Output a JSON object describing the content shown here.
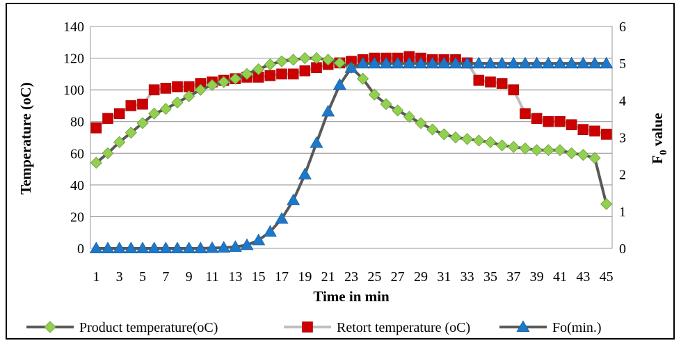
{
  "chart_data": {
    "type": "line",
    "title": "",
    "xlabel": "Time in min",
    "ylabel": "Temperature (oC)",
    "y2label_main": "F",
    "y2label_sub": "0",
    "y2label_tail": "value",
    "x": [
      1,
      2,
      3,
      4,
      5,
      6,
      7,
      8,
      9,
      10,
      11,
      12,
      13,
      14,
      15,
      16,
      17,
      18,
      19,
      20,
      21,
      22,
      23,
      24,
      25,
      26,
      27,
      28,
      29,
      30,
      31,
      32,
      33,
      34,
      35,
      36,
      37,
      38,
      39,
      40,
      41,
      42,
      43,
      44,
      45
    ],
    "x_tick_labels": [
      "1",
      "3",
      "5",
      "7",
      "9",
      "11",
      "13",
      "15",
      "17",
      "19",
      "21",
      "23",
      "25",
      "27",
      "29",
      "31",
      "33",
      "35",
      "37",
      "39",
      "41",
      "43",
      "45"
    ],
    "ylim": [
      0,
      140
    ],
    "y_ticks": [
      0,
      20,
      40,
      60,
      80,
      100,
      120,
      140
    ],
    "y2lim": [
      0,
      6
    ],
    "y2_ticks": [
      0,
      1,
      2,
      3,
      4,
      5,
      6
    ],
    "grid": "horizontal",
    "legend_position": "bottom",
    "series": [
      {
        "name": "Product temperature(oC)",
        "axis": "left",
        "marker": "diamond",
        "line_color": "#595959",
        "marker_color": "#92d050",
        "values": [
          54,
          60,
          67,
          73,
          79,
          85,
          88,
          92,
          96,
          100,
          103,
          105,
          107,
          110,
          113,
          116,
          118,
          119,
          120,
          120,
          119,
          117,
          114,
          107,
          97,
          91,
          87,
          83,
          79,
          75,
          72,
          70,
          69,
          68,
          67,
          65,
          64,
          63,
          62,
          62,
          62,
          60,
          59,
          57,
          28
        ]
      },
      {
        "name": "Retort temperature (oC)",
        "axis": "left",
        "marker": "square",
        "line_color": "#bfbfbf",
        "marker_color": "#cc0000",
        "values": [
          76,
          82,
          85,
          90,
          91,
          100,
          101,
          102,
          102,
          104,
          105,
          106,
          107,
          108,
          108,
          109,
          110,
          110,
          112,
          114,
          116,
          117,
          118,
          119,
          120,
          120,
          120,
          121,
          120,
          119,
          119,
          119,
          117,
          106,
          105,
          104,
          100,
          85,
          82,
          80,
          80,
          78,
          75,
          74,
          72
        ]
      },
      {
        "name": "Fo(min.)",
        "axis": "right",
        "marker": "triangle",
        "line_color": "#595959",
        "marker_color": "#1f77c8",
        "values": [
          0,
          0,
          0,
          0,
          0,
          0,
          0,
          0,
          0,
          0,
          0.01,
          0.02,
          0.04,
          0.09,
          0.22,
          0.45,
          0.8,
          1.3,
          2.0,
          2.85,
          3.7,
          4.42,
          4.88,
          5.0,
          5.0,
          5.0,
          5.0,
          5.0,
          5.0,
          5.0,
          5.0,
          5.0,
          5.0,
          5.0,
          5.0,
          5.0,
          5.0,
          5.0,
          5.0,
          5.0,
          5.0,
          5.0,
          5.0,
          5.0,
          5.0
        ]
      }
    ]
  }
}
